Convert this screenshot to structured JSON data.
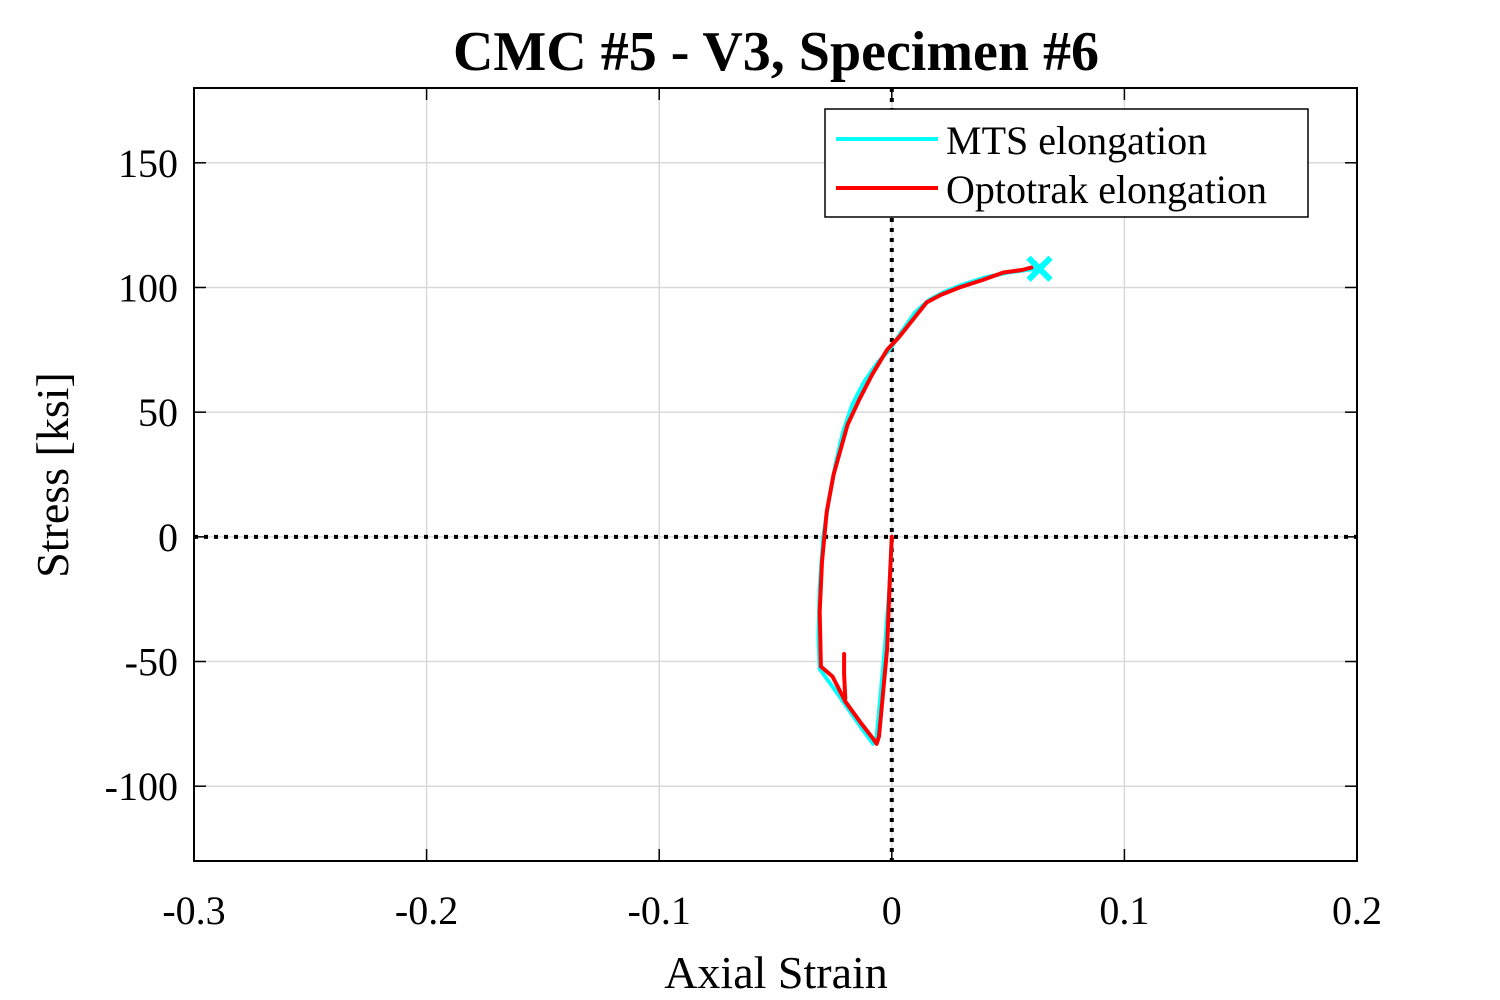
{
  "chart_data": {
    "type": "line",
    "title": "CMC #5 - V3, Specimen #6",
    "xlabel": "Axial Strain",
    "ylabel": "Stress [ksi]",
    "xlim": [
      -0.3,
      0.2
    ],
    "ylim": [
      -130,
      180
    ],
    "xticks": [
      -0.3,
      -0.2,
      -0.1,
      0,
      0.1,
      0.2
    ],
    "xtick_labels": [
      "-0.3",
      "-0.2",
      "-0.1",
      "0",
      "0.1",
      "0.2"
    ],
    "yticks": [
      -100,
      -50,
      0,
      50,
      100,
      150
    ],
    "ytick_labels": [
      "-100",
      "-50",
      "0",
      "50",
      "100",
      "150"
    ],
    "grid": true,
    "legend_position": "top-right",
    "reference_lines": {
      "x": 0,
      "y": 0,
      "style": "dotted"
    },
    "series": [
      {
        "name": "MTS elongation",
        "color": "#00ffff",
        "x": [
          0.0,
          -0.001,
          -0.003,
          -0.005,
          -0.0065,
          -0.008,
          -0.012,
          -0.018,
          -0.024,
          -0.031,
          -0.0315,
          -0.031,
          -0.0295,
          -0.027,
          -0.024,
          -0.021,
          -0.017,
          -0.012,
          -0.006,
          -0.001,
          0.004,
          0.01,
          0.016,
          0.022,
          0.03,
          0.04,
          0.05,
          0.058,
          0.062
        ],
        "y": [
          0,
          -20,
          -45,
          -65,
          -80,
          -83,
          -78,
          -70,
          -62,
          -53,
          -40,
          -20,
          0,
          15,
          30,
          42,
          53,
          62,
          70,
          75,
          82,
          90,
          95,
          98,
          101,
          104,
          106,
          107,
          107.5
        ]
      },
      {
        "name": "Optotrak elongation",
        "color": "#ff0000",
        "x": [
          0.0,
          -0.001,
          -0.002,
          -0.004,
          -0.0055,
          -0.0065,
          -0.008,
          -0.013,
          -0.02,
          -0.0255,
          -0.0305,
          -0.031,
          -0.03,
          -0.028,
          -0.025,
          -0.022,
          -0.019,
          -0.014,
          -0.0085,
          -0.002,
          0.003,
          0.009,
          0.015,
          0.021,
          0.029,
          0.039,
          0.048,
          0.056,
          0.06
        ],
        "y": [
          0,
          -20,
          -45,
          -65,
          -80,
          -83,
          -81,
          -75,
          -66,
          -56,
          -52,
          -30,
          -10,
          10,
          25,
          35,
          45,
          55,
          65,
          75,
          80,
          87,
          94,
          97,
          100,
          103,
          106,
          107,
          108
        ]
      },
      {
        "name": "",
        "color": "#ff0000",
        "x": [
          -0.02,
          -0.0205,
          -0.0205
        ],
        "y": [
          -65,
          -55,
          -47
        ]
      }
    ],
    "markers": [
      {
        "x": 0.0635,
        "y": 107.5,
        "symbol": "x",
        "color": "#00ffff"
      }
    ]
  }
}
